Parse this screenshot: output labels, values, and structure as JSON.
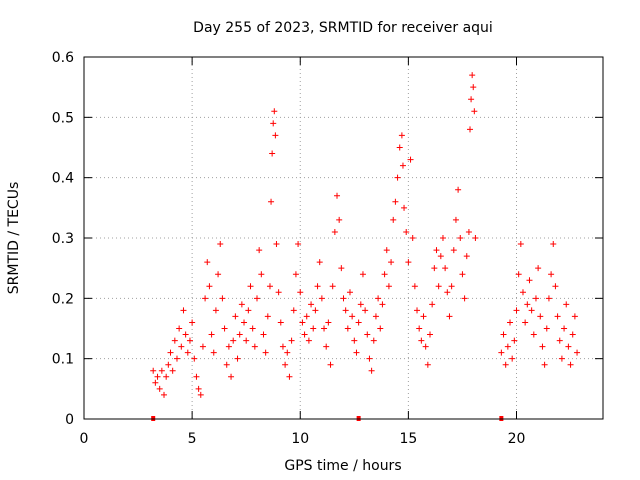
{
  "chart_data": {
    "type": "scatter",
    "title": "Day 255 of 2023, SRMTID for receiver aqui",
    "xlabel": "GPS time / hours",
    "ylabel": "SRMTID / TECUs",
    "xlim": [
      0,
      24
    ],
    "ylim": [
      0,
      0.6
    ],
    "xticks": [
      0,
      5,
      10,
      15,
      20
    ],
    "yticks": [
      0,
      0.1,
      0.2,
      0.3,
      0.4,
      0.5,
      0.6
    ],
    "grid": true,
    "marker": "+",
    "color": "#ff0000",
    "gap_markers_x": [
      3.2,
      12.7,
      19.3
    ],
    "series": [
      {
        "name": "SRMTID",
        "points": [
          [
            3.2,
            0.08
          ],
          [
            3.3,
            0.06
          ],
          [
            3.4,
            0.07
          ],
          [
            3.5,
            0.05
          ],
          [
            3.6,
            0.08
          ],
          [
            3.7,
            0.04
          ],
          [
            3.8,
            0.07
          ],
          [
            3.9,
            0.09
          ],
          [
            4.0,
            0.11
          ],
          [
            4.1,
            0.08
          ],
          [
            4.2,
            0.13
          ],
          [
            4.3,
            0.1
          ],
          [
            4.4,
            0.15
          ],
          [
            4.5,
            0.12
          ],
          [
            4.6,
            0.18
          ],
          [
            4.7,
            0.14
          ],
          [
            4.8,
            0.11
          ],
          [
            4.9,
            0.13
          ],
          [
            5.0,
            0.16
          ],
          [
            5.1,
            0.1
          ],
          [
            5.2,
            0.07
          ],
          [
            5.3,
            0.05
          ],
          [
            5.4,
            0.04
          ],
          [
            5.5,
            0.12
          ],
          [
            5.6,
            0.2
          ],
          [
            5.7,
            0.26
          ],
          [
            5.8,
            0.22
          ],
          [
            5.9,
            0.14
          ],
          [
            6.0,
            0.11
          ],
          [
            6.1,
            0.18
          ],
          [
            6.2,
            0.24
          ],
          [
            6.3,
            0.29
          ],
          [
            6.4,
            0.2
          ],
          [
            6.5,
            0.15
          ],
          [
            6.6,
            0.09
          ],
          [
            6.7,
            0.12
          ],
          [
            6.8,
            0.07
          ],
          [
            6.9,
            0.13
          ],
          [
            7.0,
            0.17
          ],
          [
            7.1,
            0.1
          ],
          [
            7.2,
            0.14
          ],
          [
            7.3,
            0.19
          ],
          [
            7.4,
            0.16
          ],
          [
            7.5,
            0.13
          ],
          [
            7.6,
            0.18
          ],
          [
            7.7,
            0.22
          ],
          [
            7.8,
            0.15
          ],
          [
            7.9,
            0.12
          ],
          [
            8.0,
            0.2
          ],
          [
            8.1,
            0.28
          ],
          [
            8.2,
            0.24
          ],
          [
            8.3,
            0.14
          ],
          [
            8.4,
            0.11
          ],
          [
            8.5,
            0.17
          ],
          [
            8.6,
            0.22
          ],
          [
            8.65,
            0.36
          ],
          [
            8.7,
            0.44
          ],
          [
            8.75,
            0.49
          ],
          [
            8.8,
            0.51
          ],
          [
            8.85,
            0.47
          ],
          [
            8.9,
            0.29
          ],
          [
            9.0,
            0.21
          ],
          [
            9.1,
            0.16
          ],
          [
            9.2,
            0.12
          ],
          [
            9.3,
            0.09
          ],
          [
            9.4,
            0.11
          ],
          [
            9.5,
            0.07
          ],
          [
            9.6,
            0.13
          ],
          [
            9.7,
            0.18
          ],
          [
            9.8,
            0.24
          ],
          [
            9.9,
            0.29
          ],
          [
            10.0,
            0.21
          ],
          [
            10.1,
            0.16
          ],
          [
            10.2,
            0.14
          ],
          [
            10.3,
            0.17
          ],
          [
            10.4,
            0.13
          ],
          [
            10.5,
            0.19
          ],
          [
            10.6,
            0.15
          ],
          [
            10.7,
            0.18
          ],
          [
            10.8,
            0.22
          ],
          [
            10.9,
            0.26
          ],
          [
            11.0,
            0.2
          ],
          [
            11.1,
            0.15
          ],
          [
            11.2,
            0.12
          ],
          [
            11.3,
            0.16
          ],
          [
            11.4,
            0.09
          ],
          [
            11.5,
            0.22
          ],
          [
            11.6,
            0.31
          ],
          [
            11.7,
            0.37
          ],
          [
            11.8,
            0.33
          ],
          [
            11.9,
            0.25
          ],
          [
            12.0,
            0.2
          ],
          [
            12.1,
            0.18
          ],
          [
            12.2,
            0.15
          ],
          [
            12.3,
            0.21
          ],
          [
            12.4,
            0.17
          ],
          [
            12.5,
            0.13
          ],
          [
            12.6,
            0.11
          ],
          [
            12.7,
            0.16
          ],
          [
            12.8,
            0.19
          ],
          [
            12.9,
            0.24
          ],
          [
            13.0,
            0.18
          ],
          [
            13.1,
            0.14
          ],
          [
            13.2,
            0.1
          ],
          [
            13.3,
            0.08
          ],
          [
            13.4,
            0.13
          ],
          [
            13.5,
            0.17
          ],
          [
            13.6,
            0.2
          ],
          [
            13.7,
            0.15
          ],
          [
            13.8,
            0.19
          ],
          [
            13.9,
            0.24
          ],
          [
            14.0,
            0.28
          ],
          [
            14.1,
            0.22
          ],
          [
            14.2,
            0.26
          ],
          [
            14.3,
            0.33
          ],
          [
            14.4,
            0.36
          ],
          [
            14.5,
            0.4
          ],
          [
            14.6,
            0.45
          ],
          [
            14.7,
            0.47
          ],
          [
            14.75,
            0.42
          ],
          [
            14.8,
            0.35
          ],
          [
            14.9,
            0.31
          ],
          [
            15.0,
            0.26
          ],
          [
            15.1,
            0.43
          ],
          [
            15.2,
            0.3
          ],
          [
            15.3,
            0.22
          ],
          [
            15.4,
            0.18
          ],
          [
            15.5,
            0.15
          ],
          [
            15.6,
            0.13
          ],
          [
            15.7,
            0.17
          ],
          [
            15.8,
            0.12
          ],
          [
            15.9,
            0.09
          ],
          [
            16.0,
            0.14
          ],
          [
            16.1,
            0.19
          ],
          [
            16.2,
            0.25
          ],
          [
            16.3,
            0.28
          ],
          [
            16.4,
            0.22
          ],
          [
            16.5,
            0.27
          ],
          [
            16.6,
            0.3
          ],
          [
            16.7,
            0.25
          ],
          [
            16.8,
            0.21
          ],
          [
            16.9,
            0.17
          ],
          [
            17.0,
            0.22
          ],
          [
            17.1,
            0.28
          ],
          [
            17.2,
            0.33
          ],
          [
            17.3,
            0.38
          ],
          [
            17.4,
            0.3
          ],
          [
            17.5,
            0.24
          ],
          [
            17.6,
            0.2
          ],
          [
            17.7,
            0.27
          ],
          [
            17.8,
            0.31
          ],
          [
            17.85,
            0.48
          ],
          [
            17.9,
            0.53
          ],
          [
            17.95,
            0.57
          ],
          [
            18.0,
            0.55
          ],
          [
            18.05,
            0.51
          ],
          [
            18.1,
            0.3
          ],
          [
            19.3,
            0.11
          ],
          [
            19.4,
            0.14
          ],
          [
            19.5,
            0.09
          ],
          [
            19.6,
            0.12
          ],
          [
            19.7,
            0.16
          ],
          [
            19.8,
            0.1
          ],
          [
            19.9,
            0.13
          ],
          [
            20.0,
            0.18
          ],
          [
            20.1,
            0.24
          ],
          [
            20.2,
            0.29
          ],
          [
            20.3,
            0.21
          ],
          [
            20.4,
            0.16
          ],
          [
            20.5,
            0.19
          ],
          [
            20.6,
            0.23
          ],
          [
            20.7,
            0.18
          ],
          [
            20.8,
            0.14
          ],
          [
            20.9,
            0.2
          ],
          [
            21.0,
            0.25
          ],
          [
            21.1,
            0.17
          ],
          [
            21.2,
            0.12
          ],
          [
            21.3,
            0.09
          ],
          [
            21.4,
            0.15
          ],
          [
            21.5,
            0.2
          ],
          [
            21.6,
            0.24
          ],
          [
            21.7,
            0.29
          ],
          [
            21.8,
            0.22
          ],
          [
            21.9,
            0.17
          ],
          [
            22.0,
            0.13
          ],
          [
            22.1,
            0.1
          ],
          [
            22.2,
            0.15
          ],
          [
            22.3,
            0.19
          ],
          [
            22.4,
            0.12
          ],
          [
            22.5,
            0.09
          ],
          [
            22.6,
            0.14
          ],
          [
            22.7,
            0.17
          ],
          [
            22.8,
            0.11
          ]
        ]
      }
    ]
  }
}
